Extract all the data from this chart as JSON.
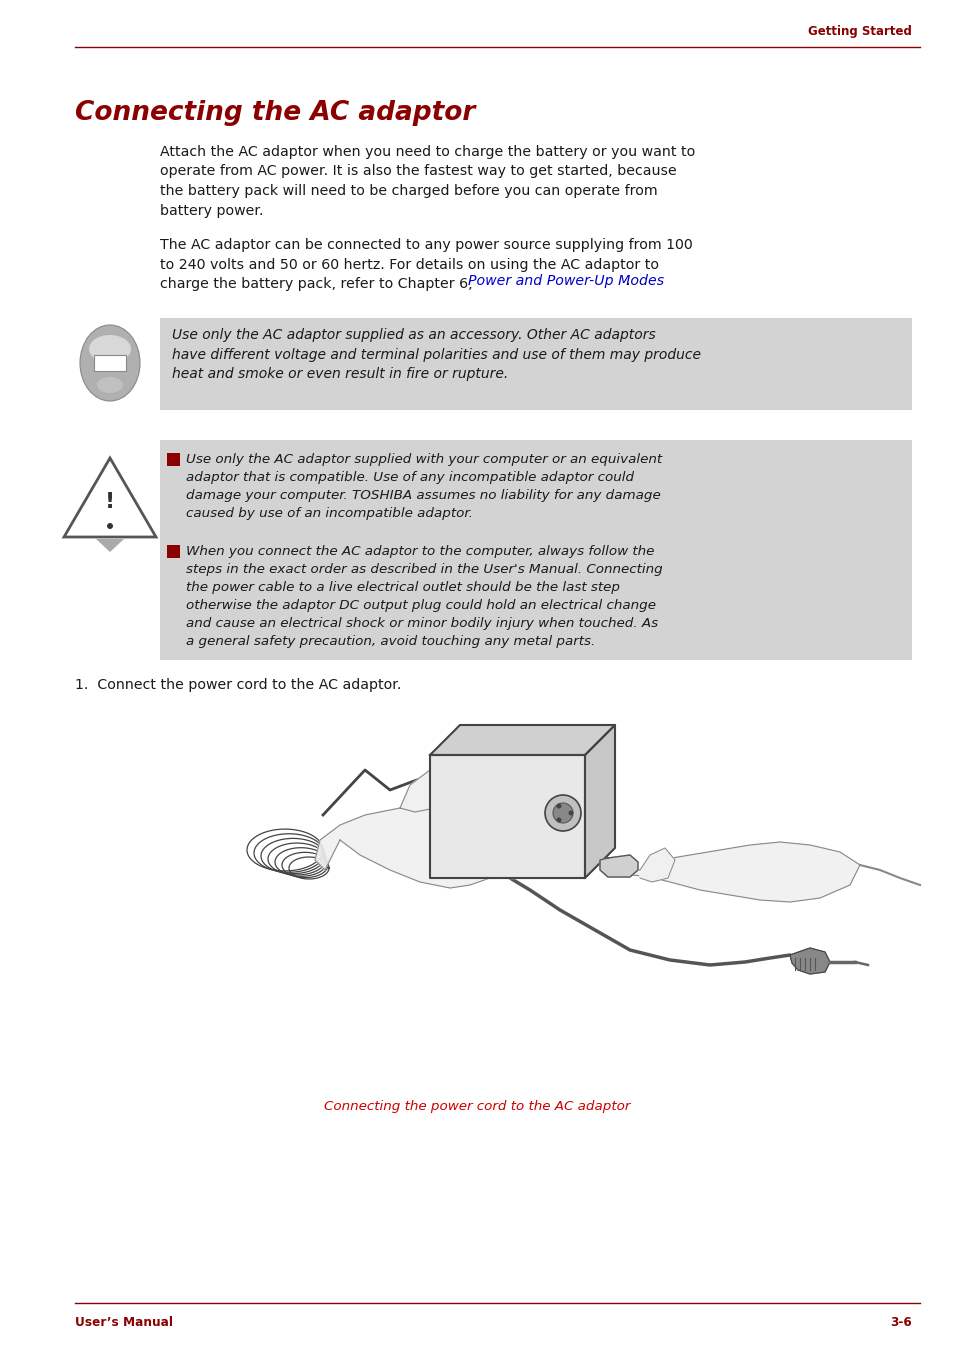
{
  "bg_color": "#ffffff",
  "header_text": "Getting Started",
  "header_color": "#8b0000",
  "header_fontsize": 8.5,
  "title": "Connecting the AC adaptor",
  "title_color": "#8b0000",
  "title_fontsize": 19,
  "body_color": "#1a1a1a",
  "body_fontsize": 10.2,
  "link_color": "#0000cc",
  "para1": "Attach the AC adaptor when you need to charge the battery or you want to\noperate from AC power. It is also the fastest way to get started, because\nthe battery pack will need to be charged before you can operate from\nbattery power.",
  "para2_line1": "The AC adaptor can be connected to any power source supplying from 100",
  "para2_line2": "to 240 volts and 50 or 60 hertz. For details on using the AC adaptor to",
  "para2_line3": "charge the battery pack, refer to Chapter 6, ",
  "para2_link": "Power and Power-Up Modes",
  "para2_end": ".",
  "note_text": "Use only the AC adaptor supplied as an accessory. Other AC adaptors\nhave different voltage and terminal polarities and use of them may produce\nheat and smoke or even result in fire or rupture.",
  "note_bg": "#d3d3d3",
  "warning_bg": "#d3d3d3",
  "warning_bullet1": "Use only the AC adaptor supplied with your computer or an equivalent\nadaptor that is compatible. Use of any incompatible adaptor could\ndamage your computer. TOSHIBA assumes no liability for any damage\ncaused by use of an incompatible adaptor.",
  "warning_bullet2": "When you connect the AC adaptor to the computer, always follow the\nsteps in the exact order as described in the User's Manual. Connecting\nthe power cable to a live electrical outlet should be the last step\notherwise the adaptor DC output plug could hold an electrical change\nand cause an electrical shock or minor bodily injury when touched. As\na general safety precaution, avoid touching any metal parts.",
  "step1": "1.  Connect the power cord to the AC adaptor.",
  "caption": "Connecting the power cord to the AC adaptor",
  "caption_color": "#cc0000",
  "footer_left": "User’s Manual",
  "footer_right": "3-6",
  "footer_color": "#8b0000",
  "line_color": "#8b0000",
  "bullet_color": "#8b0000"
}
